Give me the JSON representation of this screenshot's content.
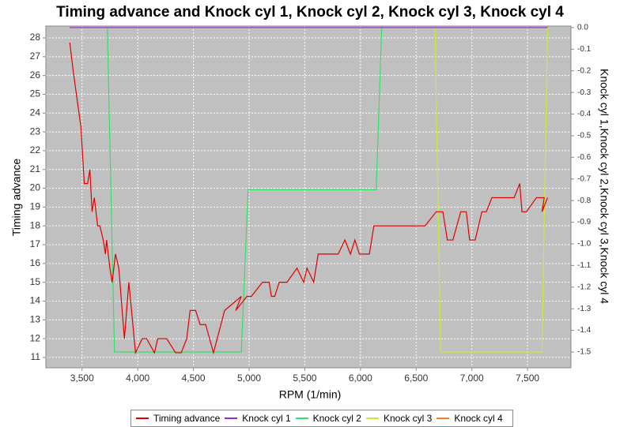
{
  "chart_data": {
    "type": "line",
    "title": "Timing advance and Knock cyl 1, Knock cyl 2, Knock cyl 3, Knock cyl 4",
    "x_label": "RPM (1/min)",
    "y_label": "Timing advance",
    "y2_label": "Knock cyl 1,Knock cyl 2,Knock cyl 3,Knock cyl 4",
    "xlim": [
      3175,
      7890
    ],
    "ylim": [
      10.45,
      28.63
    ],
    "y2lim": [
      -1.573,
      0.007
    ],
    "xticks": [
      {
        "value": 3500,
        "label": "3,500"
      },
      {
        "value": 4000,
        "label": "4,000"
      },
      {
        "value": 4500,
        "label": "4,500"
      },
      {
        "value": 5000,
        "label": "5,000"
      },
      {
        "value": 5500,
        "label": "5,500"
      },
      {
        "value": 6000,
        "label": "6,000"
      },
      {
        "value": 6500,
        "label": "6,500"
      },
      {
        "value": 7000,
        "label": "7,000"
      },
      {
        "value": 7500,
        "label": "7,500"
      }
    ],
    "yticks": [
      11,
      12,
      13,
      14,
      15,
      16,
      17,
      18,
      19,
      20,
      21,
      22,
      23,
      24,
      25,
      26,
      27,
      28
    ],
    "y2ticks": [
      {
        "value": 0,
        "label": "0.0"
      },
      -0.1,
      -0.2,
      -0.3,
      -0.4,
      -0.5,
      -0.6,
      -0.7,
      -0.8,
      -0.9,
      {
        "value": -1,
        "label": "-1.0"
      },
      -1.1,
      -1.2,
      -1.3,
      -1.4,
      -1.5
    ],
    "grid": true,
    "series": [
      {
        "name": "Timing advance",
        "color": "#e00000",
        "x": [
          3390,
          3420,
          3490,
          3520,
          3550,
          3570,
          3590,
          3610,
          3640,
          3660,
          3690,
          3710,
          3720,
          3750,
          3770,
          3800,
          3830,
          3880,
          3920,
          3980,
          4040,
          4080,
          4150,
          4180,
          4260,
          4340,
          4390,
          4440,
          4470,
          4520,
          4560,
          4610,
          4680,
          4780,
          4930,
          4880,
          4980,
          5020,
          5120,
          5180,
          5200,
          5230,
          5270,
          5340,
          5430,
          5490,
          5520,
          5580,
          5620,
          5800,
          5860,
          5910,
          5950,
          5990,
          6080,
          6120,
          6580,
          6680,
          6740,
          6780,
          6830,
          6900,
          6950,
          6980,
          7030,
          7090,
          7130,
          7180,
          7380,
          7430,
          7450,
          7490,
          7580,
          7650,
          7630,
          7680
        ],
        "values": [
          27.75,
          26.25,
          23.25,
          20.25,
          20.25,
          21,
          18.75,
          19.5,
          18,
          18,
          17.25,
          16.5,
          17.25,
          15.75,
          15,
          16.5,
          15.75,
          12,
          15,
          11.25,
          12,
          12,
          11.25,
          12,
          12,
          11.25,
          11.25,
          12,
          13.5,
          13.5,
          12.75,
          12.75,
          11.25,
          13.5,
          14.25,
          13.5,
          14.25,
          14.25,
          15,
          15,
          14.25,
          14.25,
          15,
          15,
          15.75,
          15,
          15.75,
          15,
          16.5,
          16.5,
          17.25,
          16.5,
          17.25,
          16.5,
          16.5,
          18,
          18,
          18.75,
          18.75,
          17.25,
          17.25,
          18.75,
          18.75,
          17.25,
          17.25,
          18.75,
          18.75,
          19.5,
          19.5,
          20.25,
          18.75,
          18.75,
          19.5,
          19.5,
          18.75,
          19.5
        ]
      },
      {
        "name": "Knock cyl 1",
        "color": "#8a2be2",
        "axis": "y2",
        "x": [
          3390,
          7680
        ],
        "values": [
          0,
          0
        ]
      },
      {
        "name": "Knock cyl 2",
        "color": "#33e066",
        "axis": "y2",
        "x": [
          3727,
          3791,
          4930,
          4991,
          6141,
          6191
        ],
        "values": [
          0,
          -1.5,
          -1.5,
          -0.75,
          -0.75,
          0
        ]
      },
      {
        "name": "Knock cyl 3",
        "color": "#c8ec30",
        "axis": "y2",
        "x": [
          6670,
          6720,
          7630,
          7680
        ],
        "values": [
          0,
          -1.5,
          -1.5,
          0
        ]
      },
      {
        "name": "Knock cyl 4",
        "color": "#ff8020",
        "axis": "y2",
        "x": [
          3390,
          7680
        ],
        "values": [
          0,
          0
        ]
      }
    ]
  }
}
